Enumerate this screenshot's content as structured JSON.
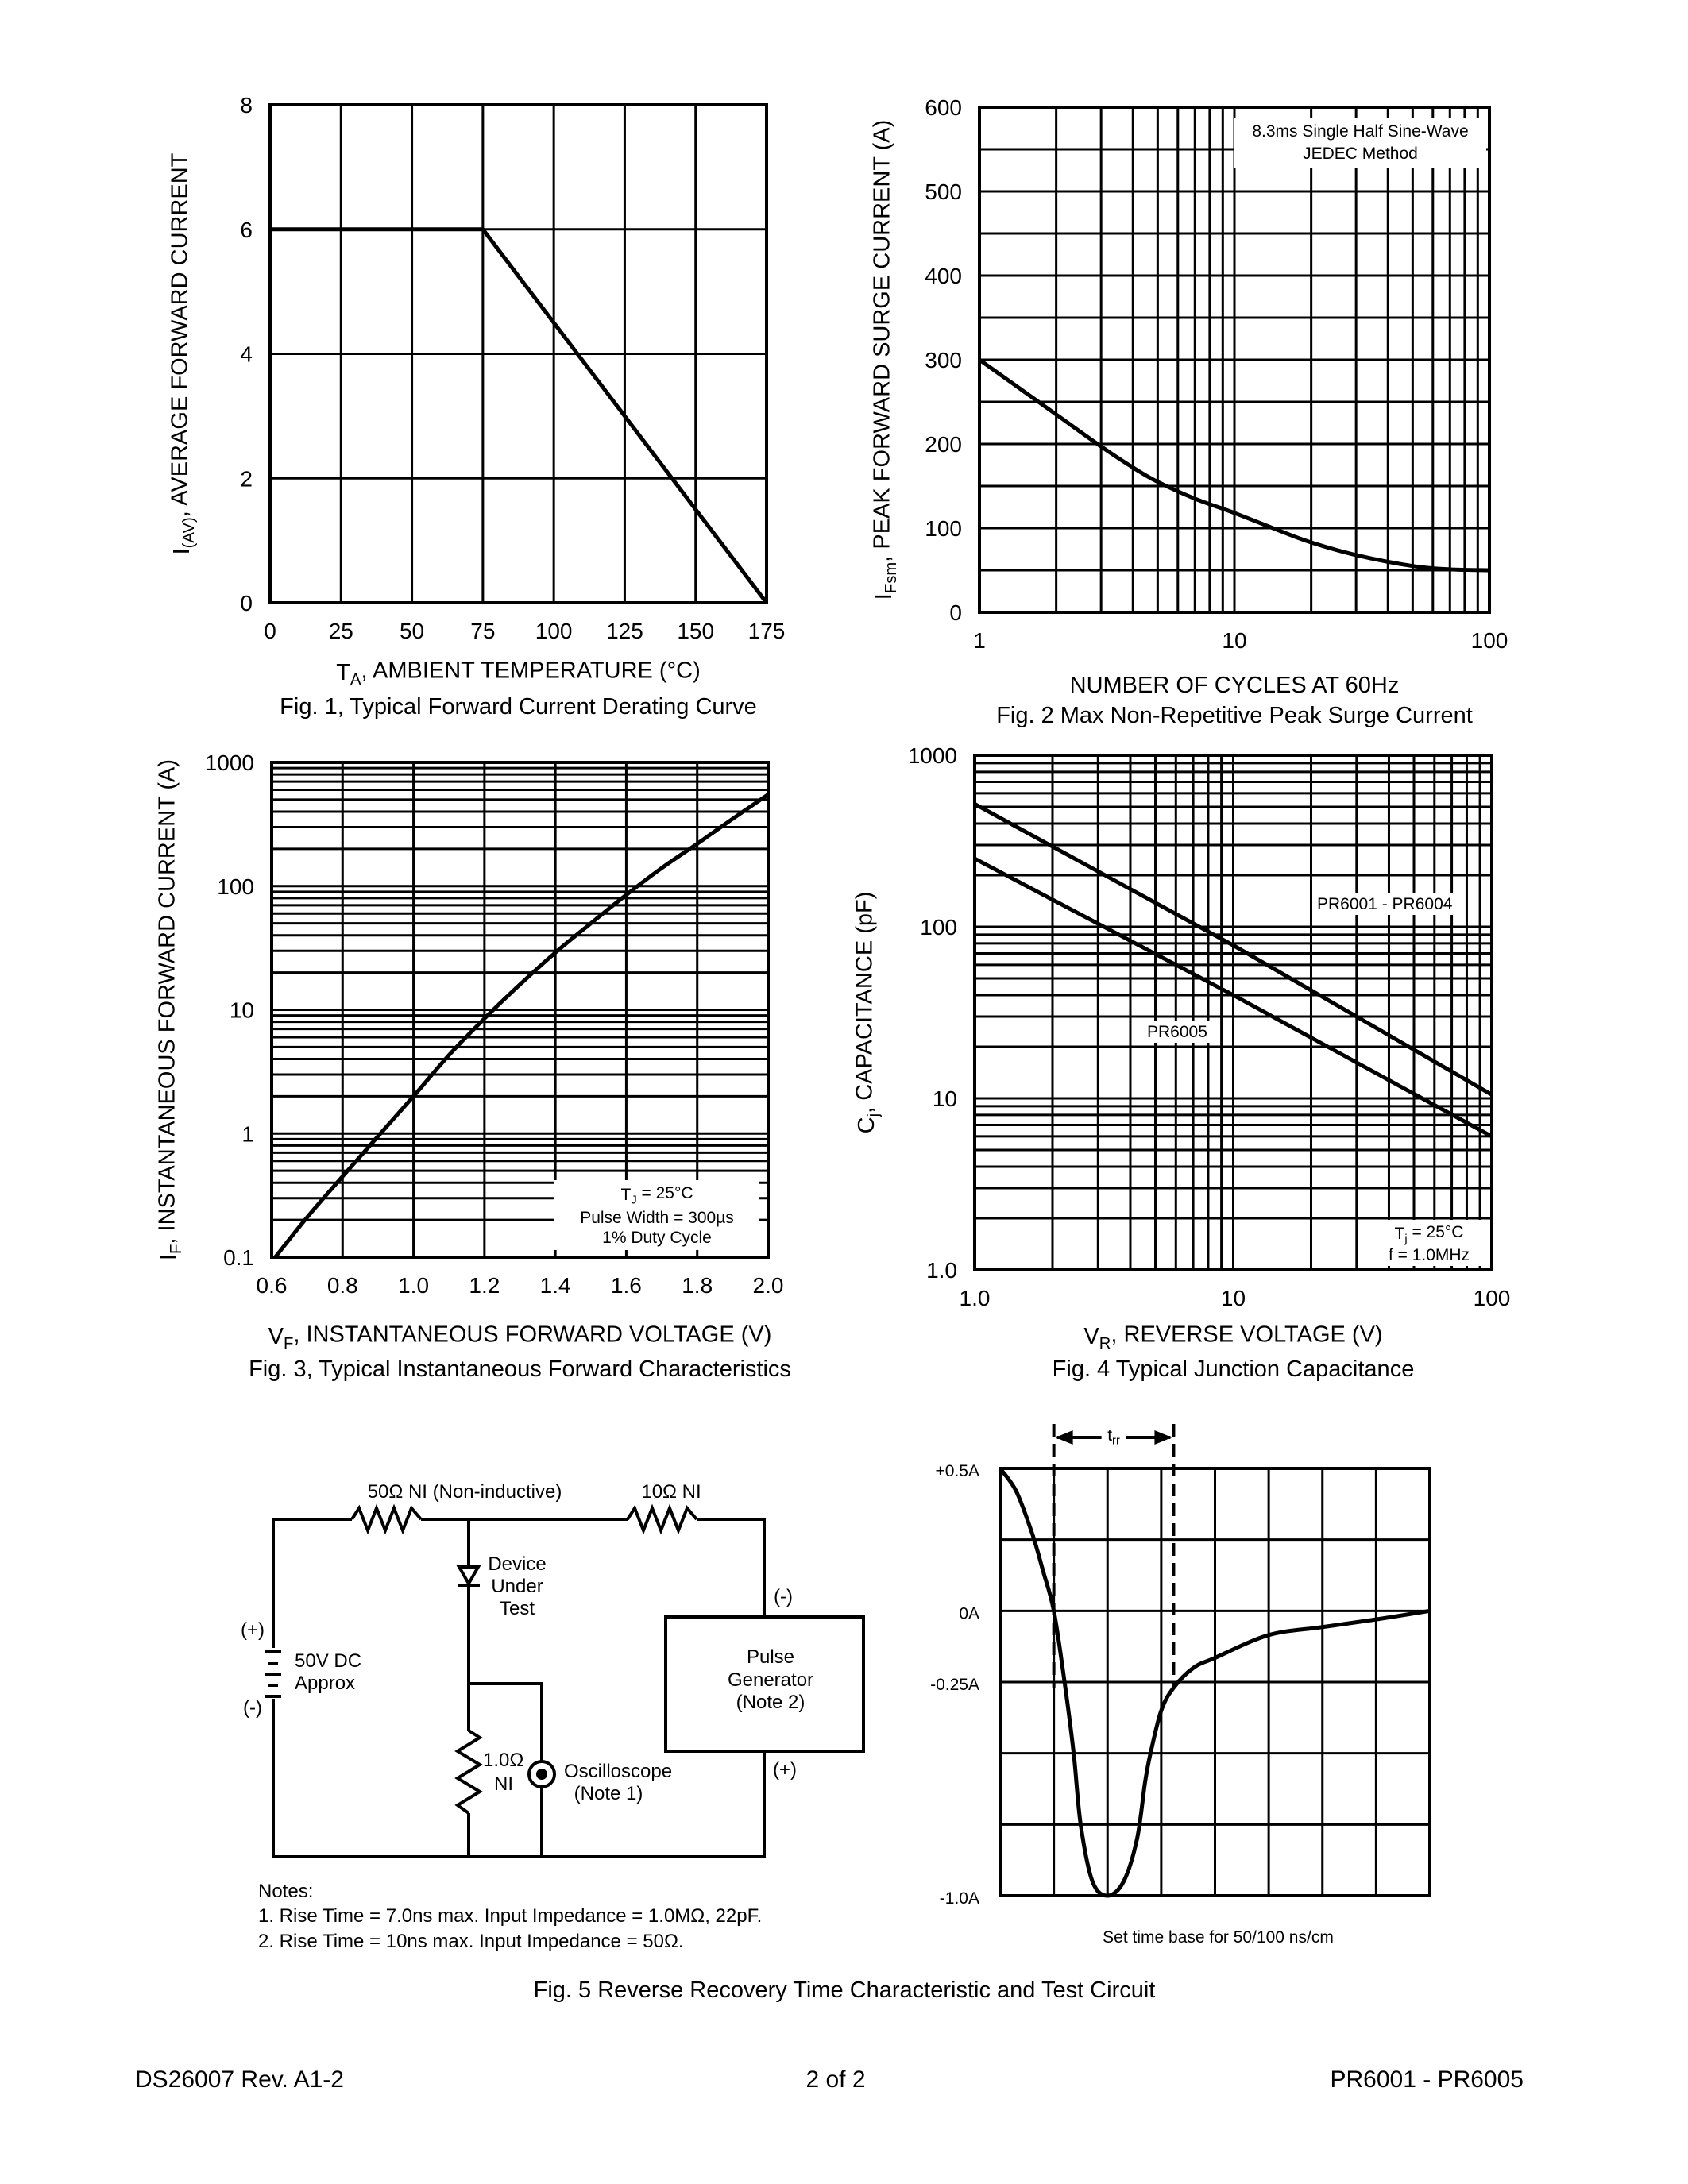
{
  "chart_data": [
    {
      "id": "fig1",
      "type": "line",
      "caption": "Fig. 1,  Typical Forward Current Derating Curve",
      "xlabel": {
        "symbol": "T",
        "sub": "A",
        "text": ", AMBIENT TEMPERATURE (°C)"
      },
      "ylabel": {
        "symbol": "I",
        "sub": "(AV)",
        "text": ", AVERAGE FORWARD CURRENT"
      },
      "x_scale": "linear",
      "y_scale": "linear",
      "xlim": [
        0,
        175
      ],
      "ylim": [
        0,
        8
      ],
      "xticks": [
        0,
        25,
        50,
        75,
        100,
        125,
        150,
        175
      ],
      "xtick_labels": [
        "0",
        "25",
        "50",
        "75",
        "100",
        "125",
        "150",
        "175"
      ],
      "yticks": [
        0,
        2,
        4,
        6,
        8
      ],
      "ytick_labels": [
        "0",
        "2",
        "4",
        "6",
        "8"
      ],
      "grid": true,
      "series": [
        {
          "x": [
            0,
            75,
            175
          ],
          "y": [
            6,
            6,
            0
          ]
        }
      ]
    },
    {
      "id": "fig2",
      "type": "line",
      "caption": "Fig. 2  Max Non-Repetitive Peak Surge Current",
      "xlabel": {
        "symbol": "",
        "sub": "",
        "text": "NUMBER OF CYCLES AT 60Hz"
      },
      "ylabel": {
        "symbol": "I",
        "sub": "Fsm",
        "text": ", PEAK FORWARD SURGE CURRENT (A)"
      },
      "x_scale": "log",
      "y_scale": "linear",
      "xlim": [
        1,
        100
      ],
      "ylim": [
        0,
        600
      ],
      "xticks": [
        1,
        10,
        100
      ],
      "xtick_labels": [
        "1",
        "10",
        "100"
      ],
      "yticks": [
        0,
        100,
        200,
        300,
        400,
        500,
        600
      ],
      "ytick_labels": [
        "0",
        "100",
        "200",
        "300",
        "400",
        "500",
        "600"
      ],
      "grid": true,
      "annotation": [
        "8.3ms Single Half Sine-Wave",
        "JEDEC Method"
      ],
      "series": [
        {
          "x": [
            1,
            1.5,
            2,
            3,
            4,
            5,
            7,
            10,
            15,
            20,
            30,
            50,
            70,
            100
          ],
          "y": [
            300,
            262,
            235,
            197,
            172,
            155,
            135,
            118,
            97,
            83,
            68,
            55,
            51,
            50
          ]
        }
      ]
    },
    {
      "id": "fig3",
      "type": "line",
      "caption": "Fig. 3,  Typical Instantaneous Forward Characteristics",
      "xlabel": {
        "symbol": "V",
        "sub": "F",
        "text": ", INSTANTANEOUS FORWARD VOLTAGE (V)"
      },
      "ylabel": {
        "symbol": "I",
        "sub": "F",
        "text": ", INSTANTANEOUS FORWARD CURRENT (A)"
      },
      "x_scale": "linear",
      "y_scale": "log",
      "xlim": [
        0.6,
        2.0
      ],
      "ylim": [
        0.1,
        1000
      ],
      "xticks": [
        0.6,
        0.8,
        1.0,
        1.2,
        1.4,
        1.6,
        1.8,
        2.0
      ],
      "xtick_labels": [
        "0.6",
        "0.8",
        "1.0",
        "1.2",
        "1.4",
        "1.6",
        "1.8",
        "2.0"
      ],
      "yticks": [
        0.1,
        1,
        10,
        100,
        1000
      ],
      "ytick_labels": [
        "0.1",
        "1",
        "10",
        "100",
        "1000"
      ],
      "grid": true,
      "annotation": [
        {
          "symbol": "T",
          "sub": "J",
          "text": " = 25°C"
        },
        "Pulse Width = 300µs",
        "1% Duty Cycle"
      ],
      "series": [
        {
          "x": [
            0.61,
            0.7,
            0.8,
            0.9,
            1.0,
            1.1,
            1.2,
            1.3,
            1.4,
            1.5,
            1.6,
            1.7,
            1.8,
            1.9,
            2.0
          ],
          "y": [
            0.1,
            0.21,
            0.45,
            0.95,
            2,
            4.3,
            8.5,
            16,
            29,
            50,
            85,
            140,
            220,
            350,
            550
          ]
        }
      ]
    },
    {
      "id": "fig4",
      "type": "line",
      "caption": "Fig. 4  Typical Junction Capacitance",
      "xlabel": {
        "symbol": "V",
        "sub": "R",
        "text": ", REVERSE VOLTAGE (V)"
      },
      "ylabel": {
        "symbol": "C",
        "sub": "j",
        "text": ", CAPACITANCE (pF)"
      },
      "x_scale": "log",
      "y_scale": "log",
      "xlim": [
        1,
        100
      ],
      "ylim": [
        1,
        1000
      ],
      "xticks": [
        1,
        10,
        100
      ],
      "xtick_labels": [
        "1.0",
        "10",
        "100"
      ],
      "yticks": [
        1,
        10,
        100,
        1000
      ],
      "ytick_labels": [
        "1.0",
        "10",
        "100",
        "1000"
      ],
      "grid": true,
      "annotation": [
        {
          "symbol": "T",
          "sub": "j",
          "text": " = 25°C"
        },
        "f = 1.0MHz"
      ],
      "series": [
        {
          "name": "PR6001 - PR6004",
          "x": [
            1,
            10,
            100
          ],
          "y": [
            520,
            78,
            10.5
          ]
        },
        {
          "name": "PR6005",
          "x": [
            1,
            10,
            100
          ],
          "y": [
            250,
            40,
            6
          ]
        }
      ]
    },
    {
      "id": "fig5-scope",
      "type": "line",
      "xlabel_text": "Set time base for 50/100 ns/cm",
      "x_scale": "linear",
      "y_scale": "linear",
      "xlim": [
        0,
        8
      ],
      "ylim": [
        -1.0,
        0.5
      ],
      "ytick_labels_shown": [
        {
          "v": 0.5,
          "label": "+0.5A"
        },
        {
          "v": 0,
          "label": "0A"
        },
        {
          "v": -0.25,
          "label": "-0.25A"
        },
        {
          "v": -1.0,
          "label": "-1.0A"
        }
      ],
      "grid": true,
      "trr_label": {
        "symbol": "t",
        "sub": "rr"
      },
      "trr_markers_x": [
        1.0,
        3.23
      ],
      "series": [
        {
          "x": [
            0,
            0.3,
            0.6,
            0.8,
            1.0,
            1.2,
            1.37,
            1.5,
            1.72,
            2.0,
            2.3,
            2.55,
            2.7,
            2.8,
            3.0,
            3.23,
            3.6,
            4,
            5,
            6,
            7,
            8
          ],
          "y": [
            0.5,
            0.42,
            0.27,
            0.14,
            0,
            -0.25,
            -0.5,
            -0.75,
            -0.95,
            -1.0,
            -0.95,
            -0.8,
            -0.6,
            -0.5,
            -0.35,
            -0.27,
            -0.2,
            -0.165,
            -0.085,
            -0.057,
            -0.03,
            0
          ]
        }
      ]
    }
  ],
  "circuit": {
    "r50_label": "50Ω NI (Non-inductive)",
    "r10_label": "10Ω NI",
    "dut_lines": [
      "Device",
      "Under",
      "Test"
    ],
    "battery_plus": "(+)",
    "battery_minus": "(-)",
    "battery_lines": [
      "50V DC",
      "Approx"
    ],
    "gen_minus": "(-)",
    "gen_plus": "(+)",
    "gen_lines": [
      "Pulse",
      "Generator",
      "(Note 2)"
    ],
    "r1_lines": [
      "1.0Ω",
      "NI"
    ],
    "scope_lines": [
      "Oscilloscope",
      "(Note 1)"
    ],
    "notes": [
      "Notes:",
      "1. Rise Time = 7.0ns max. Input Impedance = 1.0MΩ, 22pF.",
      "2. Rise Time = 10ns max. Input Impedance = 50Ω."
    ]
  },
  "fig5_caption": "Fig. 5  Reverse Recovery Time Characteristic and Test Circuit",
  "footer": {
    "left": "DS26007 Rev. A1-2",
    "center": "2 of 2",
    "right": "PR6001 - PR6005"
  }
}
